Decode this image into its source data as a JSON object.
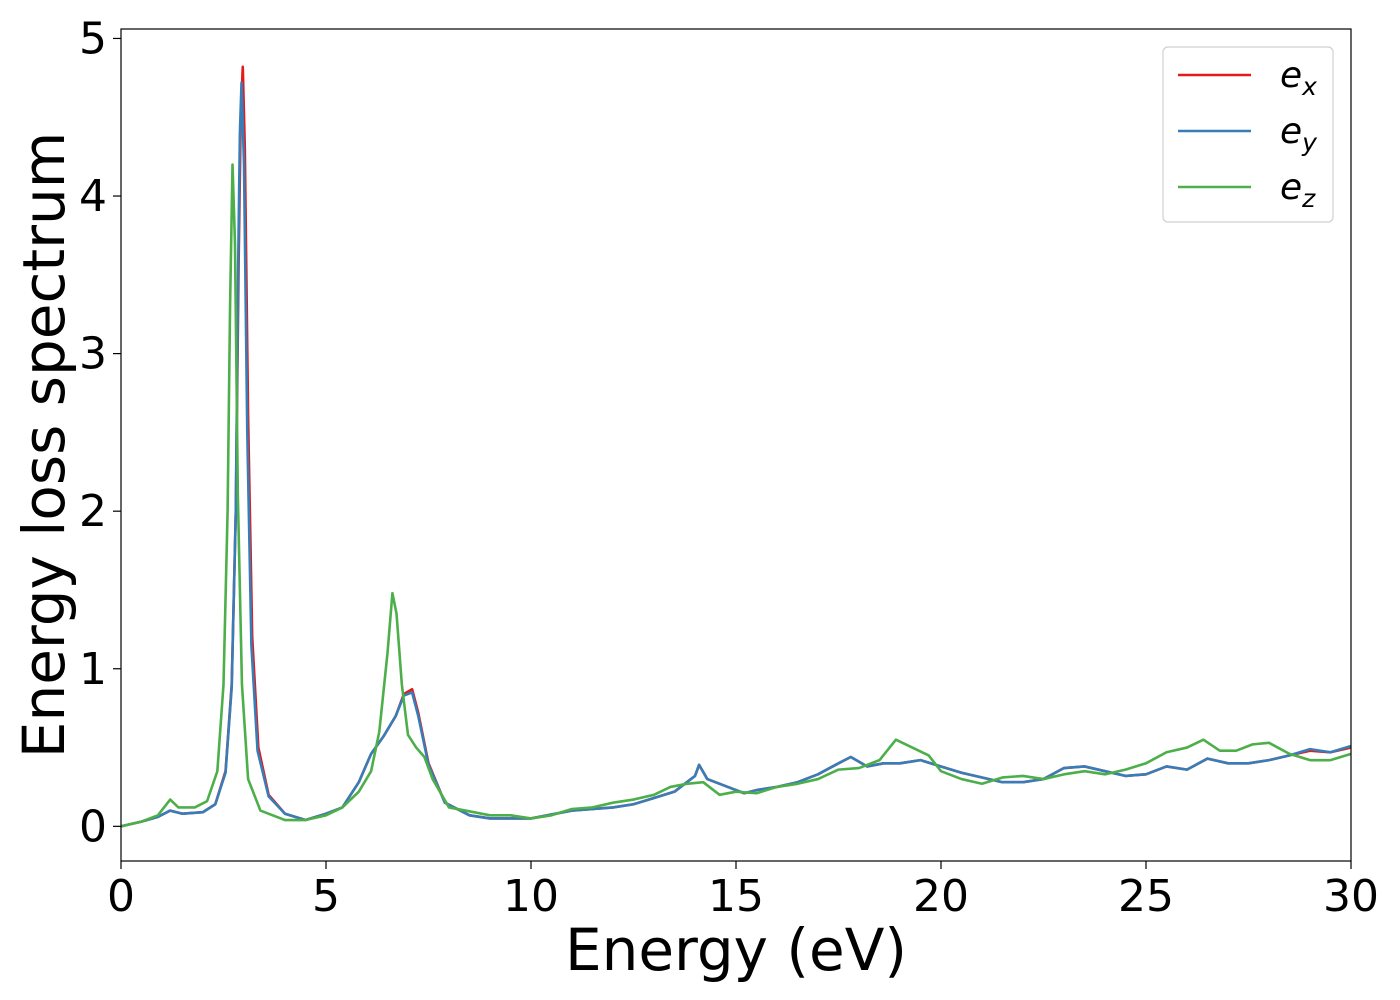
{
  "chart_data": {
    "type": "line",
    "title": "",
    "xlabel": "Energy (eV)",
    "ylabel": "Energy loss spectrum",
    "xlim": [
      0,
      30
    ],
    "ylim": [
      -0.22,
      5.06
    ],
    "x_ticks": [
      0,
      5,
      10,
      15,
      20,
      25,
      30
    ],
    "y_ticks": [
      0,
      1,
      2,
      3,
      4,
      5
    ],
    "x_tick_labels": [
      "0",
      "5",
      "10",
      "15",
      "20",
      "25",
      "30"
    ],
    "y_tick_labels": [
      "0",
      "1",
      "2",
      "3",
      "4",
      "5"
    ],
    "grid": false,
    "legend_position": "top-right",
    "series": [
      {
        "name": "e_x",
        "legend_base": "e",
        "legend_sub": "x",
        "color": "#e41a1c",
        "points": [
          [
            0,
            0.0
          ],
          [
            0.5,
            0.03
          ],
          [
            0.9,
            0.06
          ],
          [
            1.2,
            0.1
          ],
          [
            1.5,
            0.08
          ],
          [
            2.0,
            0.09
          ],
          [
            2.3,
            0.14
          ],
          [
            2.55,
            0.35
          ],
          [
            2.7,
            0.9
          ],
          [
            2.8,
            2.0
          ],
          [
            2.87,
            3.6
          ],
          [
            2.92,
            4.5
          ],
          [
            2.97,
            4.82
          ],
          [
            3.02,
            4.3
          ],
          [
            3.1,
            2.6
          ],
          [
            3.2,
            1.2
          ],
          [
            3.35,
            0.5
          ],
          [
            3.6,
            0.2
          ],
          [
            4.0,
            0.08
          ],
          [
            4.5,
            0.04
          ],
          [
            5.0,
            0.08
          ],
          [
            5.4,
            0.12
          ],
          [
            5.8,
            0.28
          ],
          [
            6.1,
            0.46
          ],
          [
            6.4,
            0.57
          ],
          [
            6.7,
            0.7
          ],
          [
            6.9,
            0.84
          ],
          [
            7.1,
            0.87
          ],
          [
            7.25,
            0.72
          ],
          [
            7.5,
            0.4
          ],
          [
            7.9,
            0.15
          ],
          [
            8.5,
            0.07
          ],
          [
            9.0,
            0.05
          ],
          [
            10.0,
            0.05
          ],
          [
            11.0,
            0.1
          ],
          [
            12.0,
            0.12
          ],
          [
            12.5,
            0.14
          ],
          [
            13.0,
            0.18
          ],
          [
            13.5,
            0.22
          ],
          [
            14.0,
            0.32
          ],
          [
            14.1,
            0.39
          ],
          [
            14.3,
            0.3
          ],
          [
            14.8,
            0.25
          ],
          [
            15.2,
            0.21
          ],
          [
            15.5,
            0.23
          ],
          [
            16.0,
            0.25
          ],
          [
            16.5,
            0.28
          ],
          [
            17.0,
            0.33
          ],
          [
            17.5,
            0.4
          ],
          [
            17.8,
            0.44
          ],
          [
            18.2,
            0.38
          ],
          [
            18.6,
            0.4
          ],
          [
            19.0,
            0.4
          ],
          [
            19.5,
            0.42
          ],
          [
            20.0,
            0.38
          ],
          [
            20.5,
            0.34
          ],
          [
            21.0,
            0.31
          ],
          [
            21.5,
            0.28
          ],
          [
            22.0,
            0.28
          ],
          [
            22.5,
            0.3
          ],
          [
            23.0,
            0.37
          ],
          [
            23.5,
            0.38
          ],
          [
            24.0,
            0.35
          ],
          [
            24.5,
            0.32
          ],
          [
            25.0,
            0.33
          ],
          [
            25.5,
            0.38
          ],
          [
            26.0,
            0.36
          ],
          [
            26.5,
            0.43
          ],
          [
            27.0,
            0.4
          ],
          [
            27.5,
            0.4
          ],
          [
            28.0,
            0.42
          ],
          [
            28.5,
            0.45
          ],
          [
            29.0,
            0.48
          ],
          [
            29.5,
            0.47
          ],
          [
            30.0,
            0.5
          ]
        ]
      },
      {
        "name": "e_y",
        "legend_base": "e",
        "legend_sub": "y",
        "color": "#377eb8",
        "points": [
          [
            0,
            0.0
          ],
          [
            0.5,
            0.03
          ],
          [
            0.9,
            0.06
          ],
          [
            1.2,
            0.1
          ],
          [
            1.5,
            0.08
          ],
          [
            2.0,
            0.09
          ],
          [
            2.3,
            0.14
          ],
          [
            2.55,
            0.34
          ],
          [
            2.7,
            0.88
          ],
          [
            2.8,
            2.0
          ],
          [
            2.86,
            3.6
          ],
          [
            2.9,
            4.4
          ],
          [
            2.94,
            4.72
          ],
          [
            3.0,
            4.2
          ],
          [
            3.08,
            2.5
          ],
          [
            3.18,
            1.15
          ],
          [
            3.33,
            0.48
          ],
          [
            3.6,
            0.19
          ],
          [
            4.0,
            0.08
          ],
          [
            4.5,
            0.04
          ],
          [
            5.0,
            0.08
          ],
          [
            5.4,
            0.12
          ],
          [
            5.8,
            0.28
          ],
          [
            6.1,
            0.46
          ],
          [
            6.4,
            0.57
          ],
          [
            6.7,
            0.7
          ],
          [
            6.9,
            0.83
          ],
          [
            7.1,
            0.85
          ],
          [
            7.25,
            0.7
          ],
          [
            7.5,
            0.39
          ],
          [
            7.9,
            0.15
          ],
          [
            8.5,
            0.07
          ],
          [
            9.0,
            0.05
          ],
          [
            10.0,
            0.05
          ],
          [
            11.0,
            0.1
          ],
          [
            12.0,
            0.12
          ],
          [
            12.5,
            0.14
          ],
          [
            13.0,
            0.18
          ],
          [
            13.5,
            0.22
          ],
          [
            14.0,
            0.32
          ],
          [
            14.1,
            0.39
          ],
          [
            14.3,
            0.3
          ],
          [
            14.8,
            0.25
          ],
          [
            15.2,
            0.21
          ],
          [
            15.5,
            0.23
          ],
          [
            16.0,
            0.25
          ],
          [
            16.5,
            0.28
          ],
          [
            17.0,
            0.33
          ],
          [
            17.5,
            0.4
          ],
          [
            17.8,
            0.44
          ],
          [
            18.2,
            0.38
          ],
          [
            18.6,
            0.4
          ],
          [
            19.0,
            0.4
          ],
          [
            19.5,
            0.42
          ],
          [
            20.0,
            0.38
          ],
          [
            20.5,
            0.34
          ],
          [
            21.0,
            0.31
          ],
          [
            21.5,
            0.28
          ],
          [
            22.0,
            0.28
          ],
          [
            22.5,
            0.3
          ],
          [
            23.0,
            0.37
          ],
          [
            23.5,
            0.38
          ],
          [
            24.0,
            0.35
          ],
          [
            24.5,
            0.32
          ],
          [
            25.0,
            0.33
          ],
          [
            25.5,
            0.38
          ],
          [
            26.0,
            0.36
          ],
          [
            26.5,
            0.43
          ],
          [
            27.0,
            0.4
          ],
          [
            27.5,
            0.4
          ],
          [
            28.0,
            0.42
          ],
          [
            28.5,
            0.45
          ],
          [
            29.0,
            0.49
          ],
          [
            29.5,
            0.47
          ],
          [
            30.0,
            0.51
          ]
        ]
      },
      {
        "name": "e_z",
        "legend_base": "e",
        "legend_sub": "z",
        "color": "#4daf4a",
        "points": [
          [
            0,
            0.0
          ],
          [
            0.5,
            0.03
          ],
          [
            0.9,
            0.07
          ],
          [
            1.2,
            0.17
          ],
          [
            1.4,
            0.12
          ],
          [
            1.8,
            0.12
          ],
          [
            2.1,
            0.16
          ],
          [
            2.35,
            0.35
          ],
          [
            2.5,
            0.9
          ],
          [
            2.6,
            2.0
          ],
          [
            2.66,
            3.3
          ],
          [
            2.72,
            4.2
          ],
          [
            2.78,
            3.7
          ],
          [
            2.85,
            2.1
          ],
          [
            2.95,
            0.9
          ],
          [
            3.1,
            0.3
          ],
          [
            3.4,
            0.1
          ],
          [
            4.0,
            0.04
          ],
          [
            4.5,
            0.04
          ],
          [
            5.0,
            0.07
          ],
          [
            5.4,
            0.12
          ],
          [
            5.8,
            0.22
          ],
          [
            6.1,
            0.35
          ],
          [
            6.3,
            0.6
          ],
          [
            6.5,
            1.1
          ],
          [
            6.62,
            1.48
          ],
          [
            6.72,
            1.35
          ],
          [
            6.85,
            0.9
          ],
          [
            7.0,
            0.58
          ],
          [
            7.2,
            0.5
          ],
          [
            7.4,
            0.44
          ],
          [
            7.6,
            0.3
          ],
          [
            8.0,
            0.12
          ],
          [
            8.4,
            0.1
          ],
          [
            9.0,
            0.07
          ],
          [
            9.5,
            0.07
          ],
          [
            10.0,
            0.05
          ],
          [
            10.5,
            0.07
          ],
          [
            11.0,
            0.11
          ],
          [
            11.5,
            0.12
          ],
          [
            12.0,
            0.15
          ],
          [
            12.5,
            0.17
          ],
          [
            13.0,
            0.2
          ],
          [
            13.4,
            0.25
          ],
          [
            13.8,
            0.27
          ],
          [
            14.2,
            0.28
          ],
          [
            14.6,
            0.2
          ],
          [
            15.0,
            0.22
          ],
          [
            15.5,
            0.21
          ],
          [
            16.0,
            0.25
          ],
          [
            16.5,
            0.27
          ],
          [
            17.0,
            0.3
          ],
          [
            17.5,
            0.36
          ],
          [
            18.0,
            0.37
          ],
          [
            18.5,
            0.42
          ],
          [
            18.9,
            0.55
          ],
          [
            19.3,
            0.5
          ],
          [
            19.7,
            0.45
          ],
          [
            20.0,
            0.35
          ],
          [
            20.5,
            0.3
          ],
          [
            21.0,
            0.27
          ],
          [
            21.5,
            0.31
          ],
          [
            22.0,
            0.32
          ],
          [
            22.5,
            0.3
          ],
          [
            23.0,
            0.33
          ],
          [
            23.5,
            0.35
          ],
          [
            24.0,
            0.33
          ],
          [
            24.5,
            0.36
          ],
          [
            25.0,
            0.4
          ],
          [
            25.5,
            0.47
          ],
          [
            26.0,
            0.5
          ],
          [
            26.4,
            0.55
          ],
          [
            26.8,
            0.48
          ],
          [
            27.2,
            0.48
          ],
          [
            27.6,
            0.52
          ],
          [
            28.0,
            0.53
          ],
          [
            28.5,
            0.46
          ],
          [
            29.0,
            0.42
          ],
          [
            29.5,
            0.42
          ],
          [
            30.0,
            0.46
          ]
        ]
      }
    ]
  }
}
